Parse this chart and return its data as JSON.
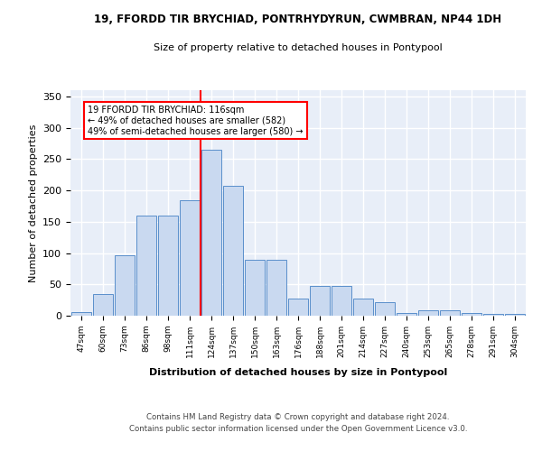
{
  "title1": "19, FFORDD TIR BRYCHIAD, PONTRHYDYRUN, CWMBRAN, NP44 1DH",
  "title2": "Size of property relative to detached houses in Pontypool",
  "xlabel": "Distribution of detached houses by size in Pontypool",
  "ylabel": "Number of detached properties",
  "categories": [
    "47sqm",
    "60sqm",
    "73sqm",
    "86sqm",
    "98sqm",
    "111sqm",
    "124sqm",
    "137sqm",
    "150sqm",
    "163sqm",
    "176sqm",
    "188sqm",
    "201sqm",
    "214sqm",
    "227sqm",
    "240sqm",
    "253sqm",
    "265sqm",
    "278sqm",
    "291sqm",
    "304sqm"
  ],
  "values": [
    6,
    34,
    96,
    160,
    160,
    184,
    265,
    207,
    90,
    90,
    27,
    48,
    48,
    27,
    22,
    5,
    9,
    9,
    5,
    3,
    3
  ],
  "bar_color": "#c9d9f0",
  "bar_edge_color": "#5a8fcb",
  "vline_x": 5.5,
  "vline_color": "red",
  "annotation_text": "19 FFORDD TIR BRYCHIAD: 116sqm\n← 49% of detached houses are smaller (582)\n49% of semi-detached houses are larger (580) →",
  "annotation_box_color": "white",
  "annotation_box_edge": "red",
  "footer": "Contains HM Land Registry data © Crown copyright and database right 2024.\nContains public sector information licensed under the Open Government Licence v3.0.",
  "ylim": [
    0,
    360
  ],
  "yticks": [
    0,
    50,
    100,
    150,
    200,
    250,
    300,
    350
  ],
  "background_color": "#e8eef8",
  "grid_color": "white"
}
